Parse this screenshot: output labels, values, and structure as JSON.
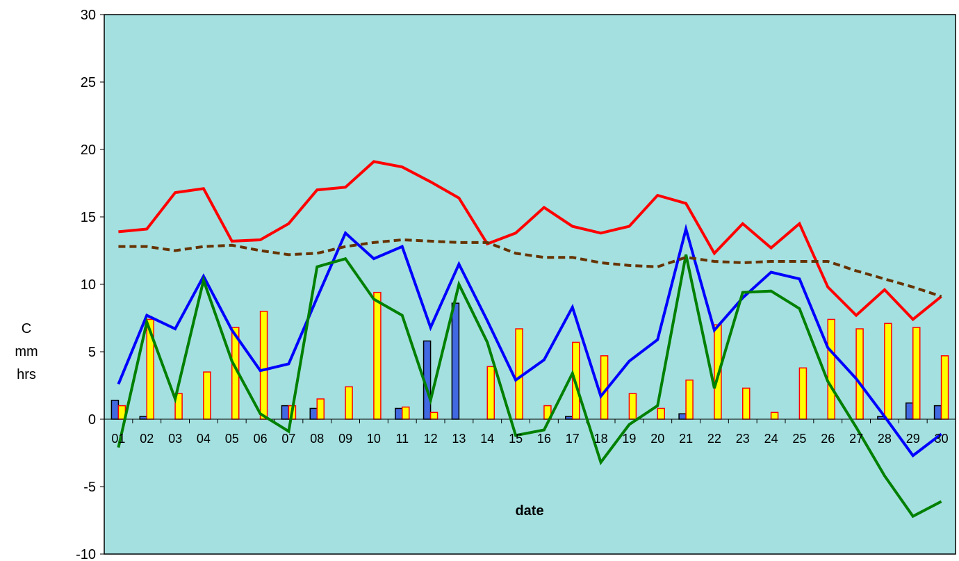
{
  "chart_data": {
    "type": "bar",
    "title": "",
    "xlabel": "date",
    "ylabel_lines": [
      "C",
      "mm",
      "hrs"
    ],
    "ylim": [
      -10,
      30
    ],
    "yticks": [
      -10,
      -5,
      0,
      5,
      10,
      15,
      20,
      25,
      30
    ],
    "categories": [
      "01",
      "02",
      "03",
      "04",
      "05",
      "06",
      "07",
      "08",
      "09",
      "10",
      "11",
      "12",
      "13",
      "14",
      "15",
      "16",
      "17",
      "18",
      "19",
      "20",
      "21",
      "22",
      "23",
      "24",
      "25",
      "26",
      "27",
      "28",
      "29",
      "30"
    ],
    "grid": false,
    "plot_background": "#A4E0E0",
    "bar_series": [
      {
        "fill": "#4169E1",
        "stroke": "#000000",
        "values": [
          1.4,
          0.2,
          0,
          0,
          0,
          0,
          1.0,
          0.8,
          0,
          0,
          0.8,
          5.8,
          8.6,
          0,
          0,
          0,
          0.2,
          0,
          0,
          0,
          0.4,
          0,
          0,
          0,
          0,
          0,
          0,
          0.2,
          1.2,
          1.0
        ]
      },
      {
        "fill": "#FFFF00",
        "stroke": "#FF0000",
        "values": [
          1.0,
          7.4,
          1.9,
          3.5,
          6.8,
          8.0,
          1.0,
          1.5,
          2.4,
          9.4,
          0.9,
          0.5,
          0,
          3.9,
          6.7,
          1.0,
          5.7,
          4.7,
          1.9,
          0.8,
          2.9,
          7.0,
          2.3,
          0.5,
          3.8,
          7.4,
          6.7,
          7.1,
          6.8,
          4.7
        ]
      }
    ],
    "line_series": [
      {
        "color": "#FF0000",
        "dashed": false,
        "values": [
          13.9,
          14.1,
          16.8,
          17.1,
          13.2,
          13.3,
          14.5,
          17.0,
          17.2,
          19.1,
          18.7,
          17.6,
          16.4,
          13.0,
          13.8,
          15.7,
          14.3,
          13.8,
          14.3,
          16.6,
          16.0,
          12.3,
          14.5,
          12.7,
          14.5,
          9.8,
          7.7,
          9.6,
          7.4,
          9.1
        ]
      },
      {
        "color": "#0000FF",
        "dashed": false,
        "values": [
          2.6,
          7.7,
          6.7,
          10.6,
          6.6,
          3.6,
          4.1,
          9.0,
          13.8,
          11.9,
          12.8,
          6.8,
          11.5,
          7.3,
          2.9,
          4.4,
          8.3,
          1.7,
          4.3,
          5.9,
          14.1,
          6.6,
          9.0,
          10.9,
          10.4,
          5.3,
          3.0,
          0.2,
          -2.7,
          -1.1
        ]
      },
      {
        "color": "#008000",
        "dashed": false,
        "values": [
          -2.1,
          7.2,
          1.5,
          10.3,
          4.3,
          0.4,
          -0.9,
          11.3,
          11.9,
          8.9,
          7.7,
          1.4,
          10.0,
          5.7,
          -1.2,
          -0.8,
          3.4,
          -3.2,
          -0.4,
          1.0,
          12.2,
          2.3,
          9.4,
          9.5,
          8.2,
          2.8,
          -0.6,
          -4.2,
          -7.2,
          -6.1
        ]
      },
      {
        "color": "#663300",
        "dashed": true,
        "values": [
          12.8,
          12.8,
          12.5,
          12.8,
          12.9,
          12.5,
          12.2,
          12.3,
          12.8,
          13.1,
          13.3,
          13.2,
          13.1,
          13.1,
          12.3,
          12.0,
          12.0,
          11.6,
          11.4,
          11.3,
          12.0,
          11.7,
          11.6,
          11.7,
          11.7,
          11.7,
          11.0,
          10.4,
          9.8,
          9.1
        ]
      }
    ]
  }
}
